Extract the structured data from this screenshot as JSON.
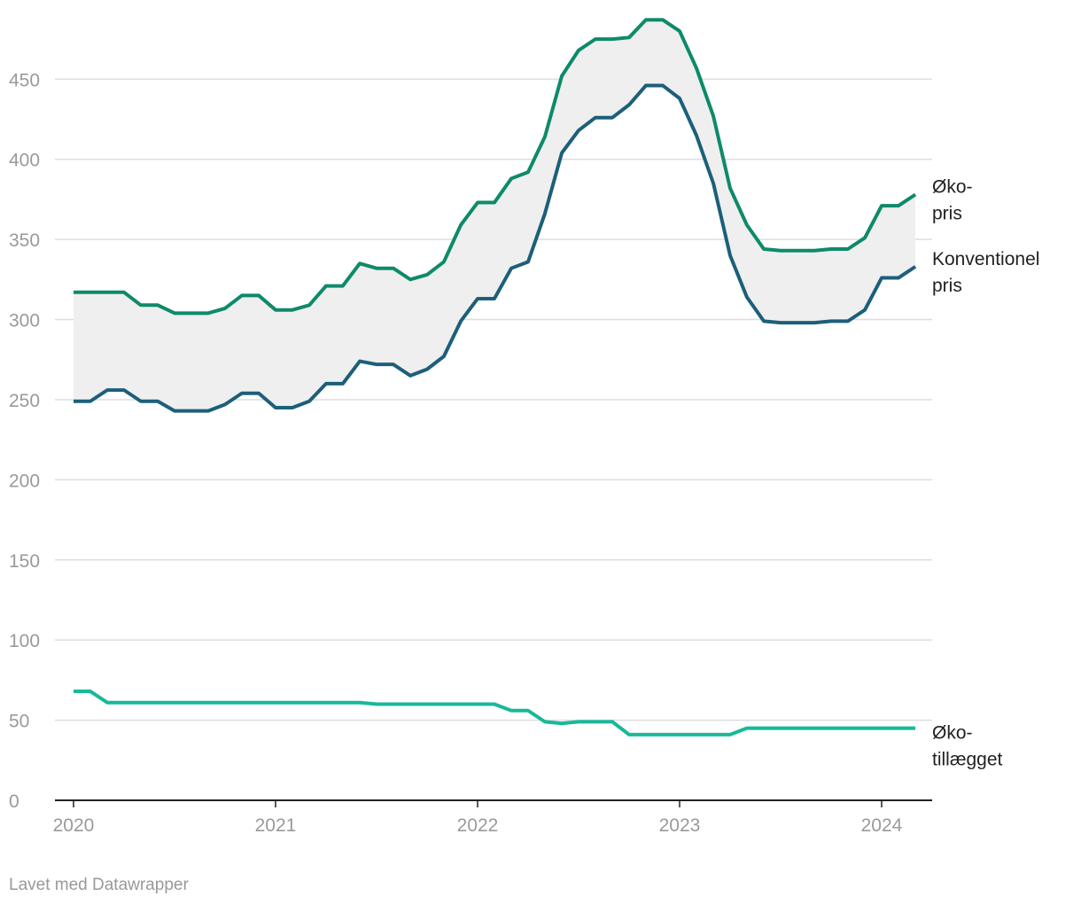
{
  "chart_data": {
    "type": "line",
    "x": [
      2020,
      2020.083,
      2020.167,
      2020.25,
      2020.333,
      2020.417,
      2020.5,
      2020.583,
      2020.667,
      2020.75,
      2020.833,
      2020.917,
      2021,
      2021.083,
      2021.167,
      2021.25,
      2021.333,
      2021.417,
      2021.5,
      2021.583,
      2021.667,
      2021.75,
      2021.833,
      2021.917,
      2022,
      2022.083,
      2022.167,
      2022.25,
      2022.333,
      2022.417,
      2022.5,
      2022.583,
      2022.667,
      2022.75,
      2022.833,
      2022.917,
      2023,
      2023.083,
      2023.167,
      2023.25,
      2023.333,
      2023.417,
      2023.5,
      2023.583,
      2023.667,
      2023.75,
      2023.833,
      2023.917,
      2024,
      2024.083,
      2024.167
    ],
    "series": [
      {
        "name": "Øko-pris",
        "color": "#0e8a6a",
        "values": [
          317,
          317,
          317,
          317,
          309,
          309,
          304,
          304,
          304,
          307,
          315,
          315,
          306,
          306,
          309,
          321,
          321,
          335,
          332,
          332,
          325,
          328,
          336,
          359,
          373,
          373,
          388,
          392,
          414,
          452,
          468,
          475,
          475,
          476,
          487,
          487,
          480,
          457,
          427,
          382,
          359,
          344,
          343,
          343,
          343,
          344,
          344,
          351,
          371,
          371,
          378
        ]
      },
      {
        "name": "Konventionel pris",
        "color": "#1c5f7a",
        "values": [
          249,
          249,
          256,
          256,
          249,
          249,
          243,
          243,
          243,
          247,
          254,
          254,
          245,
          245,
          249,
          260,
          260,
          274,
          272,
          272,
          265,
          269,
          277,
          299,
          313,
          313,
          332,
          336,
          366,
          404,
          418,
          426,
          426,
          434,
          446,
          446,
          438,
          415,
          385,
          340,
          314,
          299,
          298,
          298,
          298,
          299,
          299,
          306,
          326,
          326,
          333
        ]
      },
      {
        "name": "Øko-tillægget",
        "color": "#19b89a",
        "values": [
          68,
          68,
          61,
          61,
          61,
          61,
          61,
          61,
          61,
          61,
          61,
          61,
          61,
          61,
          61,
          61,
          61,
          61,
          60,
          60,
          60,
          60,
          60,
          60,
          60,
          60,
          56,
          56,
          49,
          48,
          49,
          49,
          49,
          41,
          41,
          41,
          41,
          41,
          41,
          41,
          45,
          45,
          45,
          45,
          45,
          45,
          45,
          45,
          45,
          45,
          45
        ]
      }
    ],
    "xlim": [
      2019.908,
      2024.25
    ],
    "xticks": [
      2020,
      2021,
      2022,
      2023,
      2024
    ],
    "ylim": [
      0,
      490
    ],
    "yticks": [
      0,
      50,
      100,
      150,
      200,
      250,
      300,
      350,
      400,
      450
    ],
    "grid": true,
    "shade_between": true,
    "footer": "Lavet med Datawrapper"
  }
}
